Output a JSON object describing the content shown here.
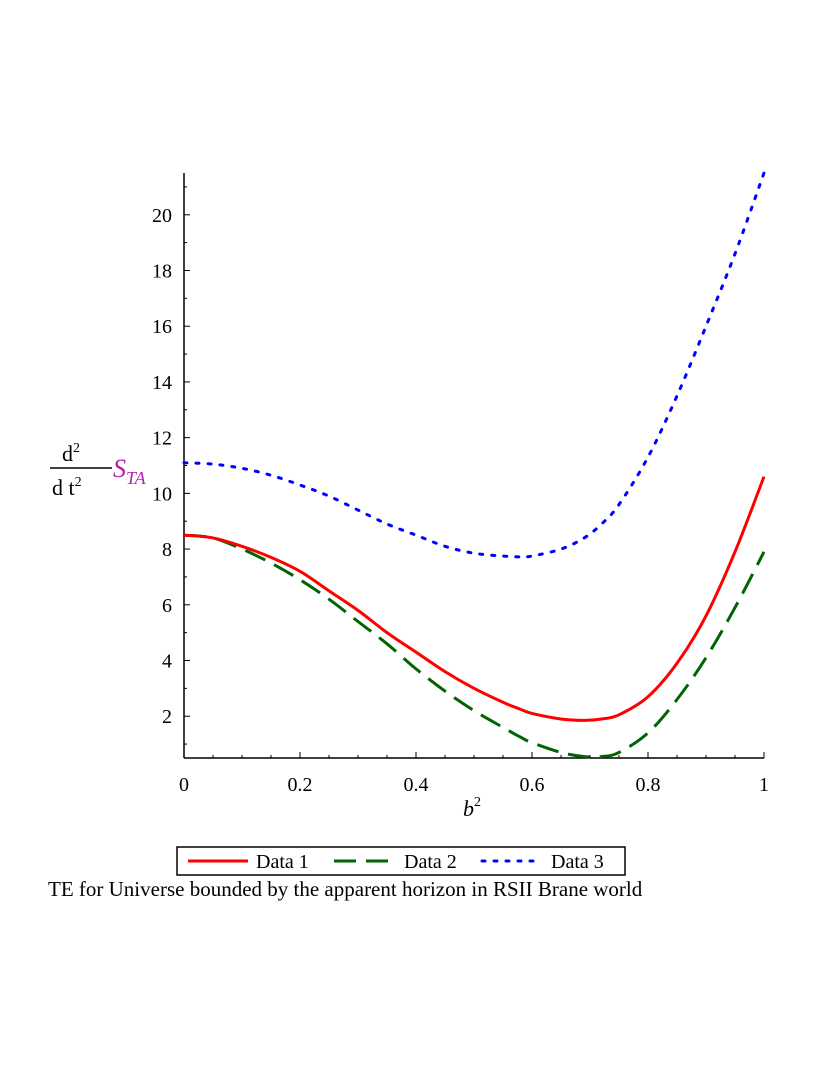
{
  "chart_data": {
    "type": "line",
    "x_range": [
      0,
      1
    ],
    "y_range": [
      0.5,
      21.5
    ],
    "x_ticks": [
      0,
      0.2,
      0.4,
      0.6,
      0.8,
      1
    ],
    "x_tick_labels": [
      "0",
      "0.2",
      "0.4",
      "0.6",
      "0.8",
      "1"
    ],
    "y_ticks": [
      2,
      4,
      6,
      8,
      10,
      12,
      14,
      16,
      18,
      20
    ],
    "y_tick_labels": [
      "2",
      "4",
      "6",
      "8",
      "10",
      "12",
      "14",
      "16",
      "18",
      "20"
    ],
    "xlabel": {
      "base": "b",
      "sup": "2"
    },
    "ylabel": {
      "numerator": "d",
      "numerator_sup": "2",
      "denominator": "d t",
      "denominator_sup": "2",
      "symbol": "S",
      "subscript": "TA"
    },
    "legend_position": "bottom",
    "x": [
      0,
      0.05,
      0.1,
      0.15,
      0.2,
      0.25,
      0.3,
      0.35,
      0.4,
      0.45,
      0.5,
      0.55,
      0.58,
      0.6,
      0.65,
      0.69,
      0.72,
      0.75,
      0.8,
      0.85,
      0.9,
      0.95,
      1.0
    ],
    "series": [
      {
        "name": "Data 1",
        "color": "#ff0000",
        "style": "solid",
        "values": [
          8.5,
          8.4,
          8.1,
          7.7,
          7.2,
          6.5,
          5.8,
          5.0,
          4.3,
          3.6,
          3.0,
          2.5,
          2.25,
          2.1,
          1.9,
          1.85,
          1.9,
          2.05,
          2.7,
          3.9,
          5.6,
          7.9,
          10.6
        ]
      },
      {
        "name": "Data 2",
        "color": "#006400",
        "style": "dashed",
        "values": [
          8.5,
          8.4,
          8.0,
          7.5,
          6.9,
          6.2,
          5.4,
          4.6,
          3.7,
          2.9,
          2.2,
          1.6,
          1.25,
          1.05,
          0.7,
          0.55,
          0.55,
          0.7,
          1.4,
          2.6,
          4.1,
          5.9,
          7.9
        ]
      },
      {
        "name": "Data 3",
        "color": "#0000ff",
        "style": "dotted",
        "values": [
          11.1,
          11.05,
          10.9,
          10.65,
          10.3,
          9.9,
          9.4,
          8.9,
          8.5,
          8.1,
          7.85,
          7.75,
          7.72,
          7.75,
          8.0,
          8.4,
          8.9,
          9.6,
          11.3,
          13.5,
          16.0,
          18.6,
          21.5
        ]
      }
    ]
  },
  "caption": "TE for Universe bounded by the apparent horizon in RSII Brane world"
}
